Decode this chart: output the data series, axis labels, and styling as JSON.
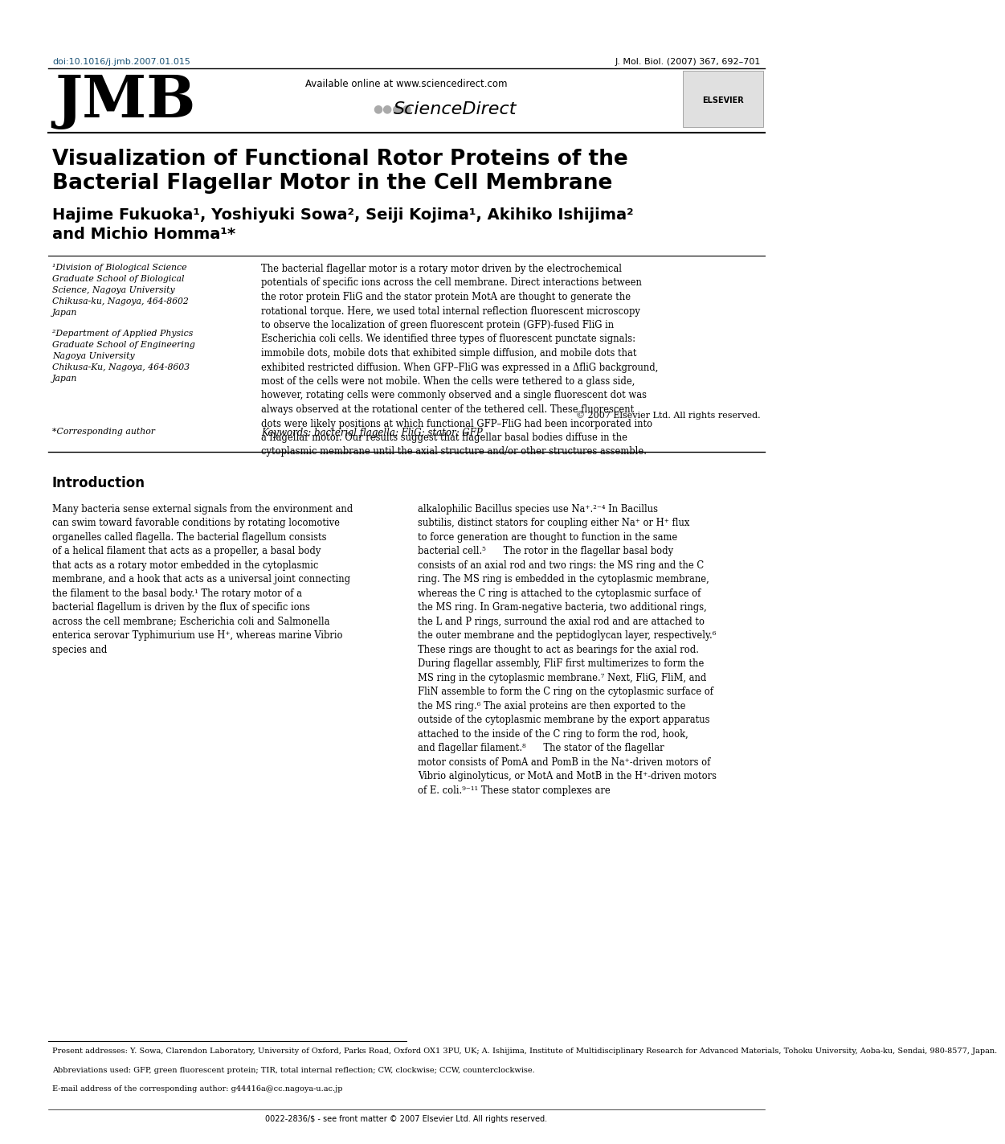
{
  "doi": "doi:10.1016/j.jmb.2007.01.015",
  "journal_ref": "J. Mol. Biol. (2007) 367, 692–701",
  "journal_logo": "JMB",
  "available_online": "Available online at www.sciencedirect.com",
  "sciencedirect": "ScienceDirect",
  "title_line1": "Visualization of Functional Rotor Proteins of the",
  "title_line2": "Bacterial Flagellar Motor in the Cell Membrane",
  "authors": "Hajime Fukuoka¹, Yoshiyuki Sowa², Seiji Kojima¹, Akihiko Ishijima²",
  "authors2": "and Michio Homma¹*",
  "affil1_line1": "¹Division of Biological Science",
  "affil1_line2": "Graduate School of Biological",
  "affil1_line3": "Science, Nagoya University",
  "affil1_line4": "Chikusa-ku, Nagoya, 464-8602",
  "affil1_line5": "Japan",
  "affil2_line1": "²Department of Applied Physics",
  "affil2_line2": "Graduate School of Engineering",
  "affil2_line3": "Nagoya University",
  "affil2_line4": "Chikusa-Ku, Nagoya, 464-8603",
  "affil2_line5": "Japan",
  "abstract": "The bacterial flagellar motor is a rotary motor driven by the electrochemical potentials of specific ions across the cell membrane. Direct interactions between the rotor protein FliG and the stator protein MotA are thought to generate the rotational torque. Here, we used total internal reflection fluorescent microscopy to observe the localization of green fluorescent protein (GFP)-fused FliG in Escherichia coli cells. We identified three types of fluorescent punctate signals: immobile dots, mobile dots that exhibited simple diffusion, and mobile dots that exhibited restricted diffusion. When GFP–FliG was expressed in a ΔfliG background, most of the cells were not mobile. When the cells were tethered to a glass side, however, rotating cells were commonly observed and a single fluorescent dot was always observed at the rotational center of the tethered cell. These fluorescent dots were likely positions at which functional GFP–FliG had been incorporated into a flagellar motor. Our results suggest that flagellar basal bodies diffuse in the cytoplasmic membrane until the axial structure and/or other structures assemble.",
  "copyright": "© 2007 Elsevier Ltd. All rights reserved.",
  "corresponding_author": "*Corresponding author",
  "keywords_label": "Keywords:",
  "keywords": "bacterial flagella; FliG; stator; GFP",
  "intro_title": "Introduction",
  "intro_col1": "Many bacteria sense external signals from the environment and can swim toward favorable conditions by rotating locomotive organelles called flagella. The bacterial flagellum consists of a helical filament that acts as a propeller, a basal body that acts as a rotary motor embedded in the cytoplasmic membrane, and a hook that acts as a universal joint connecting the filament to the basal body.¹ The rotary motor of a bacterial flagellum is driven by the flux of specific ions across the cell membrane; Escherichia coli and Salmonella enterica serovar Typhimurium use H⁺, whereas marine Vibrio species and",
  "intro_col2": "alkalophilic Bacillus species use Na⁺.²⁻⁴ In Bacillus subtilis, distinct stators for coupling either Na⁺ or H⁺ flux to force generation are thought to function in the same bacterial cell.⁵\n\n    The rotor in the flagellar basal body consists of an axial rod and two rings: the MS ring and the C ring. The MS ring is embedded in the cytoplasmic membrane, whereas the C ring is attached to the cytoplasmic surface of the MS ring. In Gram-negative bacteria, two additional rings, the L and P rings, surround the axial rod and are attached to the outer membrane and the peptidoglycan layer, respectively.⁶ These rings are thought to act as bearings for the axial rod. During flagellar assembly, FliF first multimerizes to form the MS ring in the cytoplasmic membrane.⁷ Next, FliG, FliM, and FliN assemble to form the C ring on the cytoplasmic surface of the MS ring.⁶ The axial proteins are then exported to the outside of the cytoplasmic membrane by the export apparatus attached to the inside of the C ring to form the rod, hook, and flagellar filament.⁸\n\n    The stator of the flagellar motor consists of PomA and PomB in the Na⁺-driven motors of Vibrio alginolyticus, or MotA and MotB in the H⁺-driven motors of E. coli.⁹⁻¹¹ These stator complexes are",
  "footnotes": "Present addresses: Y. Sowa, Clarendon Laboratory, University of Oxford, Parks Road, Oxford OX1 3PU, UK; A. Ishijima, Institute of Multidisciplinary Research for Advanced Materials, Tohoku University, Aoba-ku, Sendai, 980-8577, Japan.\n\nAbbreviations used: GFP, green fluorescent protein; TIR, total internal reflection; CW, clockwise; CCW, counterclockwise.\n\nE-mail address of the corresponding author: g44416a@cc.nagoya-u.ac.jp",
  "issn_line": "0022-2836/$ - see front matter © 2007 Elsevier Ltd. All rights reserved.",
  "doi_color": "#1a5276",
  "bg_color": "#ffffff",
  "text_color": "#000000",
  "title_fontsize": 17,
  "author_fontsize": 14,
  "body_fontsize": 8.5,
  "small_fontsize": 7.5
}
